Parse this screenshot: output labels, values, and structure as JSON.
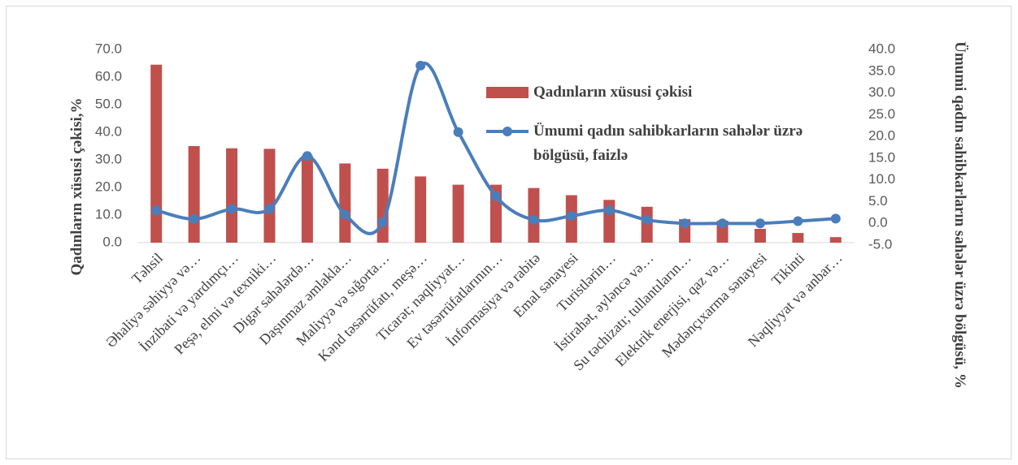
{
  "chart_data": {
    "type": "bar_line",
    "y_label": "Qadınların xüsusi  çəkisi,%",
    "y2_label": "Ümumi qadın sahibkarların sahələr üzrə bölgüsü,  %",
    "categories": [
      "Təhsil",
      "Əhaliyə səhiyyə və…",
      "İnzibati və yardımçı…",
      "Peşə, elmi və texniki…",
      "Digər sahələrdə…",
      "Daşınmaz əmlakla…",
      "Maliyyə və sığorta…",
      "Kənd təsərrüfatı, meşə…",
      "Ticarət; nəqliyyat…",
      "Ev təsərrüfatlarının…",
      "İnformasiya və rabitə",
      "Emal sənayesi",
      "Turistlərin…",
      "İstirahət, əyləncə və…",
      "Su təchizatı; tullantıların…",
      "Elektrik enerjisi, qaz və…",
      "Mədənçıxarma sənayesi",
      "Tikinti",
      "Nəqliyyat və anbar…"
    ],
    "series": [
      {
        "name": "Qadınların xüsusi  çəkisi",
        "type": "bar",
        "color": "#c0504d",
        "axis": "y",
        "values": [
          64.5,
          35,
          34.2,
          34,
          31.5,
          28.7,
          26.8,
          24,
          21,
          21,
          19.8,
          17.2,
          15.5,
          13,
          8.5,
          8,
          5,
          3.5,
          2
        ]
      },
      {
        "name": "Ümumi qadın sahibkarların sahələr üzrə bölgüsü,  faizlə",
        "type": "line",
        "color": "#4a7ebb",
        "axis": "y2",
        "values": [
          3,
          1,
          3.3,
          3.3,
          15.5,
          2,
          0.3,
          36.3,
          21,
          6.2,
          0.8,
          1.7,
          3,
          0.8,
          0,
          0,
          0,
          0.5,
          1.1
        ]
      }
    ],
    "ylim": [
      0,
      70
    ],
    "yticks": [
      {
        "value": 0,
        "label": "0.0"
      },
      {
        "value": 10,
        "label": "10.0"
      },
      {
        "value": 20,
        "label": "20.0"
      },
      {
        "value": 30,
        "label": "30.0"
      },
      {
        "value": 40,
        "label": "40.0"
      },
      {
        "value": 50,
        "label": "50.0"
      },
      {
        "value": 60,
        "label": "60.0"
      },
      {
        "value": 70,
        "label": "70.0"
      }
    ],
    "y2lim": [
      -5,
      40
    ],
    "y2ticks": [
      {
        "value": -5,
        "label": "-5.0"
      },
      {
        "value": 0,
        "label": "0.0"
      },
      {
        "value": 5,
        "label": "5.0"
      },
      {
        "value": 10,
        "label": "10.0"
      },
      {
        "value": 15,
        "label": "15.0"
      },
      {
        "value": 20,
        "label": "20.0"
      },
      {
        "value": 25,
        "label": "25.0"
      },
      {
        "value": 30,
        "label": "30.0"
      },
      {
        "value": 35,
        "label": "35.0"
      },
      {
        "value": 40,
        "label": "40.0"
      }
    ],
    "grid": false
  }
}
